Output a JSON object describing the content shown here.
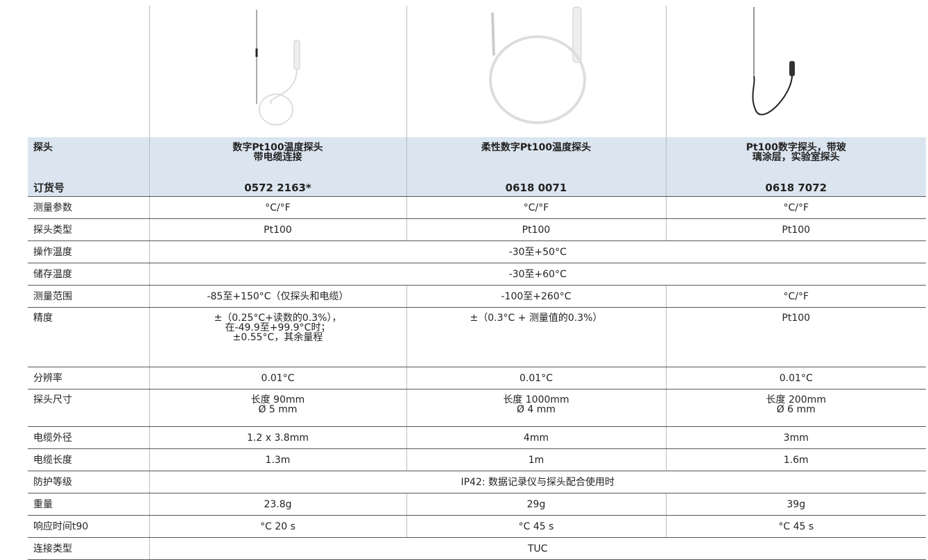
{
  "header": {
    "label": "探头",
    "products": [
      [
        "数字Pt100温度探头",
        "带电缆连接"
      ],
      [
        "柔性数字Pt100温度探头"
      ],
      [
        "Pt100数字探头，带玻",
        "璃涂层，实验室探头"
      ]
    ],
    "order_label": "订货号",
    "order_numbers": [
      "0572 2163*",
      "0618 0071",
      "0618 7072"
    ]
  },
  "rows": [
    {
      "label": "测量参数",
      "cells": [
        [
          "°C/°F"
        ],
        [
          "°C/°F"
        ],
        [
          "°C/°F"
        ]
      ]
    },
    {
      "label": "探头类型",
      "cells": [
        [
          "Pt100"
        ],
        [
          "Pt100"
        ],
        [
          "Pt100"
        ]
      ]
    },
    {
      "label": "操作温度",
      "cells": [
        [
          "-30至+50°C"
        ]
      ]
    },
    {
      "label": "储存温度",
      "cells": [
        [
          "-30至+60°C"
        ]
      ]
    },
    {
      "label": "测量范围",
      "cells": [
        [
          "-85至+150°C（仅探头和电缆）"
        ],
        [
          "-100至+260°C"
        ],
        [
          "°C/°F"
        ]
      ]
    },
    {
      "label": "精度",
      "cells": [
        [
          "±（0.25°C+读数的0.3%），",
          "在-49.9至+99.9°C时；",
          "±0.55°C，其余量程"
        ],
        [
          "±（0.3°C + 测量值的0.3%）"
        ],
        [
          "Pt100"
        ]
      ]
    },
    {
      "label": "分辨率",
      "cells": [
        [
          "0.01°C"
        ],
        [
          "0.01°C"
        ],
        [
          "0.01°C"
        ]
      ]
    },
    {
      "label": "探头尺寸",
      "cells": [
        [
          "长度 90mm",
          "Ø 5 mm"
        ],
        [
          "长度 1000mm",
          "Ø 4 mm"
        ],
        [
          "长度 200mm",
          "Ø 6 mm"
        ]
      ]
    },
    {
      "label": "电缆外径",
      "cells": [
        [
          "1.2 x 3.8mm"
        ],
        [
          "4mm"
        ],
        [
          "3mm"
        ]
      ]
    },
    {
      "label": "电缆长度",
      "cells": [
        [
          "1.3m"
        ],
        [
          "1m"
        ],
        [
          "1.6m"
        ]
      ]
    },
    {
      "label": "防护等级",
      "cells": [
        [
          "IP42: 数据记录仪与探头配合使用时"
        ]
      ]
    },
    {
      "label": "重量",
      "cells": [
        [
          "23.8g"
        ],
        [
          "29g"
        ],
        [
          "39g"
        ]
      ]
    },
    {
      "label": "响应时间t90",
      "cells": [
        [
          "°C 20 s"
        ],
        [
          "°C 45 s"
        ],
        [
          "°C 45 s"
        ]
      ]
    },
    {
      "label": "连接类型",
      "cells": [
        [
          "TUC"
        ]
      ]
    }
  ]
}
